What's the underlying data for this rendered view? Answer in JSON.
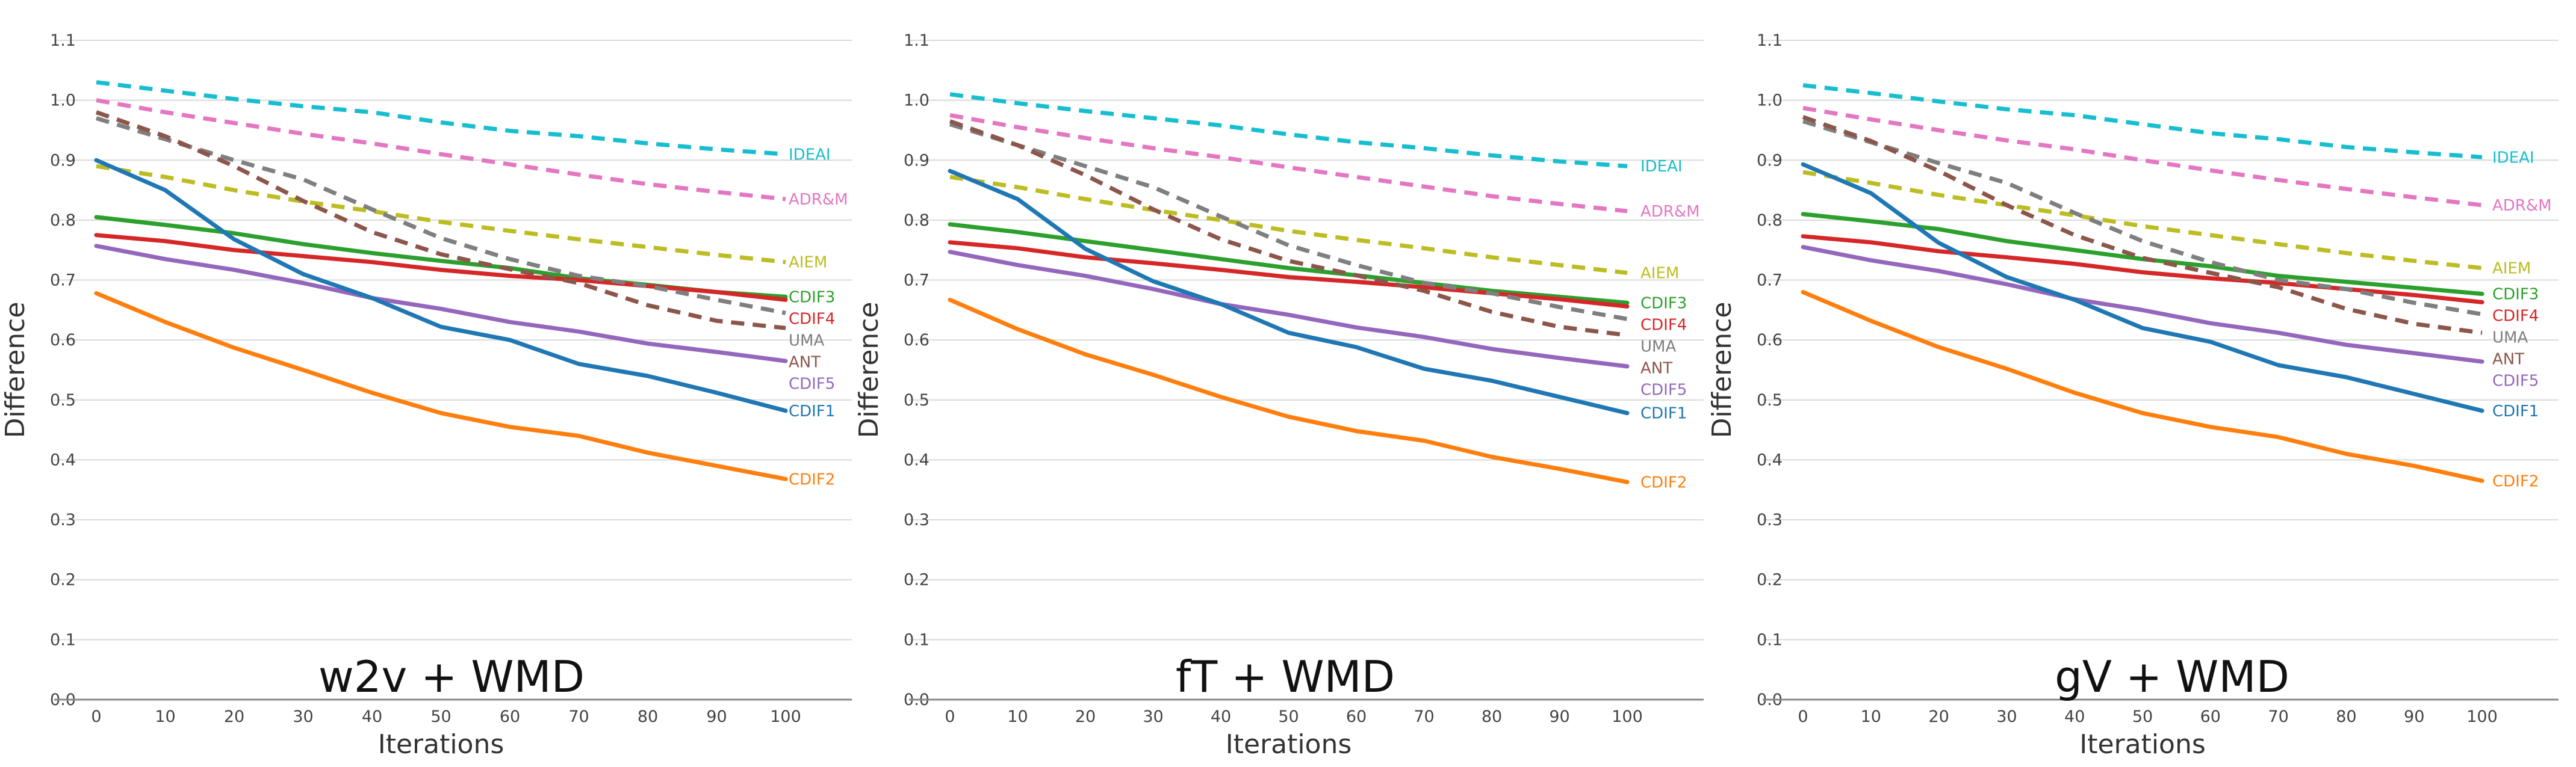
{
  "chart_data": [
    {
      "type": "line",
      "title": "w2v + WMD",
      "xlabel": "Iterations",
      "ylabel": "Difference",
      "x": [
        0,
        10,
        20,
        30,
        40,
        50,
        60,
        70,
        80,
        90,
        100
      ],
      "xticks": [
        "0",
        "10",
        "20",
        "30",
        "40",
        "50",
        "60",
        "70",
        "80",
        "90",
        "100"
      ],
      "yticks": [
        "0.0",
        "0.1",
        "0.2",
        "0.3",
        "0.4",
        "0.5",
        "0.6",
        "0.7",
        "0.8",
        "0.9",
        "1.0",
        "1.1"
      ],
      "ylim": [
        0,
        1.1
      ],
      "grid": true,
      "series": [
        {
          "name": "IDEAI",
          "color": "#17becf",
          "dashed": true,
          "values": [
            1.03,
            1.016,
            1.002,
            0.99,
            0.98,
            0.963,
            0.949,
            0.94,
            0.928,
            0.918,
            0.91
          ]
        },
        {
          "name": "ADR&M",
          "color": "#e377c2",
          "dashed": true,
          "values": [
            1.0,
            0.98,
            0.962,
            0.944,
            0.928,
            0.91,
            0.893,
            0.876,
            0.86,
            0.847,
            0.835
          ]
        },
        {
          "name": "AIEM",
          "color": "#bcbd22",
          "dashed": true,
          "values": [
            0.89,
            0.872,
            0.85,
            0.831,
            0.815,
            0.797,
            0.782,
            0.768,
            0.755,
            0.742,
            0.73
          ]
        },
        {
          "name": "CDIF3",
          "color": "#2ca02c",
          "dashed": false,
          "values": [
            0.805,
            0.792,
            0.778,
            0.76,
            0.745,
            0.732,
            0.72,
            0.703,
            0.692,
            0.68,
            0.672
          ]
        },
        {
          "name": "CDIF4",
          "color": "#d62728",
          "dashed": false,
          "values": [
            0.775,
            0.765,
            0.75,
            0.74,
            0.73,
            0.717,
            0.707,
            0.7,
            0.69,
            0.68,
            0.667
          ]
        },
        {
          "name": "UMA",
          "color": "#7f7f7f",
          "dashed": true,
          "values": [
            0.97,
            0.935,
            0.9,
            0.868,
            0.818,
            0.77,
            0.735,
            0.707,
            0.69,
            0.667,
            0.645
          ]
        },
        {
          "name": "ANT",
          "color": "#8c564b",
          "dashed": true,
          "values": [
            0.98,
            0.94,
            0.89,
            0.832,
            0.78,
            0.743,
            0.718,
            0.695,
            0.658,
            0.632,
            0.62
          ]
        },
        {
          "name": "CDIF5",
          "color": "#9467bd",
          "dashed": false,
          "values": [
            0.757,
            0.735,
            0.717,
            0.695,
            0.67,
            0.652,
            0.63,
            0.614,
            0.594,
            0.58,
            0.565
          ]
        },
        {
          "name": "CDIF1",
          "color": "#1f77b4",
          "dashed": false,
          "values": [
            0.9,
            0.85,
            0.768,
            0.71,
            0.67,
            0.622,
            0.6,
            0.56,
            0.54,
            0.512,
            0.482
          ]
        },
        {
          "name": "CDIF2",
          "color": "#ff7f0e",
          "dashed": false,
          "values": [
            0.678,
            0.63,
            0.587,
            0.55,
            0.512,
            0.478,
            0.455,
            0.44,
            0.412,
            0.39,
            0.368
          ]
        }
      ]
    },
    {
      "type": "line",
      "title": "fT + WMD",
      "xlabel": "Iterations",
      "ylabel": "Difference",
      "x": [
        0,
        10,
        20,
        30,
        40,
        50,
        60,
        70,
        80,
        90,
        100
      ],
      "xticks": [
        "0",
        "10",
        "20",
        "30",
        "40",
        "50",
        "60",
        "70",
        "80",
        "90",
        "100"
      ],
      "yticks": [
        "0.0",
        "0.1",
        "0.2",
        "0.3",
        "0.4",
        "0.5",
        "0.6",
        "0.7",
        "0.8",
        "0.9",
        "1.0",
        "1.1"
      ],
      "ylim": [
        0,
        1.1
      ],
      "grid": true,
      "series": [
        {
          "name": "IDEAI",
          "color": "#17becf",
          "dashed": true,
          "values": [
            1.01,
            0.995,
            0.982,
            0.97,
            0.958,
            0.943,
            0.93,
            0.92,
            0.908,
            0.898,
            0.89
          ]
        },
        {
          "name": "ADR&M",
          "color": "#e377c2",
          "dashed": true,
          "values": [
            0.975,
            0.955,
            0.937,
            0.92,
            0.905,
            0.888,
            0.872,
            0.856,
            0.84,
            0.827,
            0.815
          ]
        },
        {
          "name": "AIEM",
          "color": "#bcbd22",
          "dashed": true,
          "values": [
            0.872,
            0.855,
            0.835,
            0.817,
            0.8,
            0.782,
            0.767,
            0.753,
            0.738,
            0.725,
            0.712
          ]
        },
        {
          "name": "CDIF3",
          "color": "#2ca02c",
          "dashed": false,
          "values": [
            0.793,
            0.78,
            0.765,
            0.75,
            0.735,
            0.72,
            0.708,
            0.695,
            0.682,
            0.672,
            0.662
          ]
        },
        {
          "name": "CDIF4",
          "color": "#d62728",
          "dashed": false,
          "values": [
            0.763,
            0.753,
            0.738,
            0.728,
            0.717,
            0.705,
            0.697,
            0.688,
            0.678,
            0.668,
            0.656
          ]
        },
        {
          "name": "UMA",
          "color": "#7f7f7f",
          "dashed": true,
          "values": [
            0.96,
            0.925,
            0.89,
            0.855,
            0.806,
            0.758,
            0.725,
            0.695,
            0.678,
            0.655,
            0.635
          ]
        },
        {
          "name": "ANT",
          "color": "#8c564b",
          "dashed": true,
          "values": [
            0.965,
            0.925,
            0.875,
            0.818,
            0.768,
            0.732,
            0.708,
            0.682,
            0.647,
            0.622,
            0.608
          ]
        },
        {
          "name": "CDIF5",
          "color": "#9467bd",
          "dashed": false,
          "values": [
            0.747,
            0.725,
            0.707,
            0.685,
            0.66,
            0.642,
            0.621,
            0.605,
            0.585,
            0.57,
            0.556
          ]
        },
        {
          "name": "CDIF1",
          "color": "#1f77b4",
          "dashed": false,
          "values": [
            0.882,
            0.835,
            0.752,
            0.698,
            0.66,
            0.612,
            0.588,
            0.552,
            0.532,
            0.505,
            0.478
          ]
        },
        {
          "name": "CDIF2",
          "color": "#ff7f0e",
          "dashed": false,
          "values": [
            0.667,
            0.618,
            0.576,
            0.542,
            0.505,
            0.472,
            0.448,
            0.432,
            0.405,
            0.385,
            0.363
          ]
        }
      ]
    },
    {
      "type": "line",
      "title": "gV + WMD",
      "xlabel": "Iterations",
      "ylabel": "Difference",
      "x": [
        0,
        10,
        20,
        30,
        40,
        50,
        60,
        70,
        80,
        90,
        100
      ],
      "xticks": [
        "0",
        "10",
        "20",
        "30",
        "40",
        "50",
        "60",
        "70",
        "80",
        "90",
        "100"
      ],
      "yticks": [
        "0.0",
        "0.1",
        "0.2",
        "0.3",
        "0.4",
        "0.5",
        "0.6",
        "0.7",
        "0.8",
        "0.9",
        "1.0",
        "1.1"
      ],
      "ylim": [
        0,
        1.1
      ],
      "grid": true,
      "series": [
        {
          "name": "IDEAI",
          "color": "#17becf",
          "dashed": true,
          "values": [
            1.025,
            1.012,
            0.998,
            0.985,
            0.975,
            0.96,
            0.945,
            0.935,
            0.922,
            0.913,
            0.905
          ]
        },
        {
          "name": "ADR&M",
          "color": "#e377c2",
          "dashed": true,
          "values": [
            0.987,
            0.968,
            0.95,
            0.933,
            0.918,
            0.9,
            0.883,
            0.867,
            0.852,
            0.838,
            0.825
          ]
        },
        {
          "name": "AIEM",
          "color": "#bcbd22",
          "dashed": true,
          "values": [
            0.88,
            0.862,
            0.842,
            0.825,
            0.808,
            0.79,
            0.775,
            0.76,
            0.745,
            0.732,
            0.72
          ]
        },
        {
          "name": "CDIF3",
          "color": "#2ca02c",
          "dashed": false,
          "values": [
            0.81,
            0.798,
            0.785,
            0.765,
            0.75,
            0.735,
            0.723,
            0.707,
            0.697,
            0.687,
            0.677
          ]
        },
        {
          "name": "CDIF4",
          "color": "#d62728",
          "dashed": false,
          "values": [
            0.773,
            0.763,
            0.748,
            0.738,
            0.727,
            0.713,
            0.703,
            0.695,
            0.685,
            0.675,
            0.663
          ]
        },
        {
          "name": "UMA",
          "color": "#7f7f7f",
          "dashed": true,
          "values": [
            0.965,
            0.93,
            0.895,
            0.862,
            0.812,
            0.765,
            0.73,
            0.7,
            0.685,
            0.662,
            0.643
          ]
        },
        {
          "name": "ANT",
          "color": "#8c564b",
          "dashed": true,
          "values": [
            0.972,
            0.932,
            0.882,
            0.825,
            0.775,
            0.737,
            0.712,
            0.688,
            0.652,
            0.627,
            0.612
          ]
        },
        {
          "name": "CDIF5",
          "color": "#9467bd",
          "dashed": false,
          "values": [
            0.755,
            0.733,
            0.715,
            0.693,
            0.668,
            0.65,
            0.628,
            0.612,
            0.592,
            0.578,
            0.564
          ]
        },
        {
          "name": "CDIF1",
          "color": "#1f77b4",
          "dashed": false,
          "values": [
            0.893,
            0.845,
            0.762,
            0.705,
            0.667,
            0.62,
            0.597,
            0.558,
            0.538,
            0.51,
            0.482
          ]
        },
        {
          "name": "CDIF2",
          "color": "#ff7f0e",
          "dashed": false,
          "values": [
            0.68,
            0.632,
            0.588,
            0.552,
            0.512,
            0.478,
            0.455,
            0.438,
            0.41,
            0.39,
            0.365
          ]
        }
      ]
    }
  ]
}
